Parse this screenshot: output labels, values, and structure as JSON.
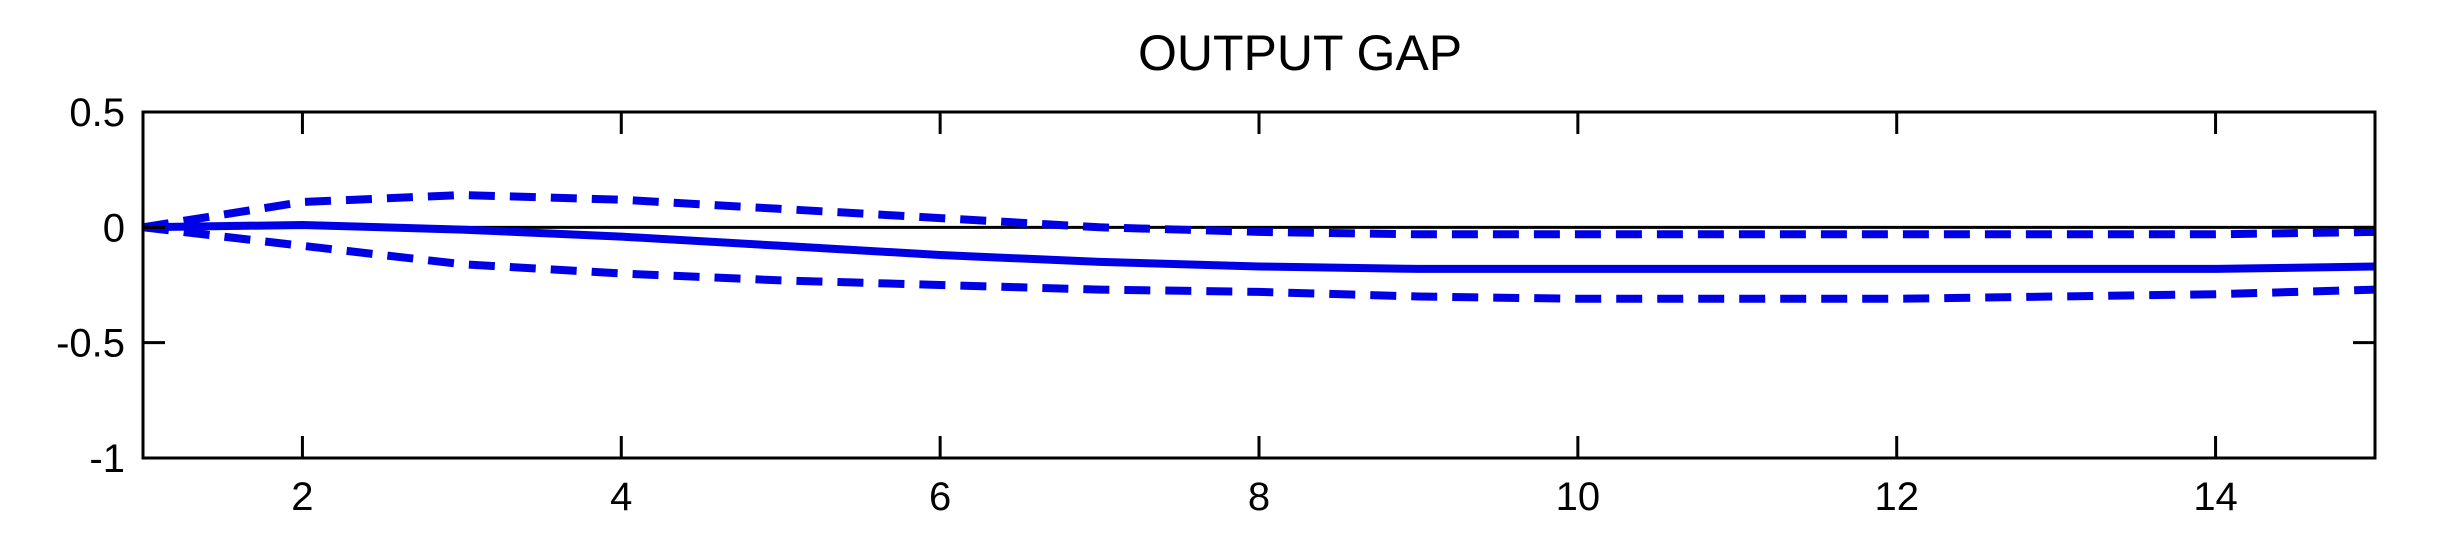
{
  "chart_data": {
    "type": "line",
    "title": "OUTPUT GAP",
    "xlabel": "",
    "ylabel": "",
    "xlim": [
      1,
      15
    ],
    "ylim": [
      -1,
      0.5
    ],
    "x_ticks": [
      2,
      4,
      6,
      8,
      10,
      12,
      14
    ],
    "x_tick_labels": [
      "2",
      "4",
      "6",
      "8",
      "10",
      "12",
      "14"
    ],
    "y_ticks": [
      0.5,
      0,
      -0.5,
      -1
    ],
    "y_tick_labels": [
      "0.5",
      "0",
      "-0.5",
      "-1"
    ],
    "grid": false,
    "zero_line": true,
    "x": [
      1,
      2,
      3,
      4,
      5,
      6,
      7,
      8,
      9,
      10,
      11,
      12,
      13,
      14,
      15
    ],
    "series": [
      {
        "role": "median",
        "style": "solid",
        "color": "#0000e6",
        "values": [
          0,
          0.01,
          -0.01,
          -0.04,
          -0.08,
          -0.12,
          -0.15,
          -0.17,
          -0.18,
          -0.18,
          -0.18,
          -0.18,
          -0.18,
          -0.18,
          -0.17
        ]
      },
      {
        "role": "upper band",
        "style": "dashed",
        "color": "#0000e6",
        "values": [
          0,
          0.11,
          0.14,
          0.12,
          0.08,
          0.04,
          0.0,
          -0.02,
          -0.03,
          -0.03,
          -0.03,
          -0.03,
          -0.03,
          -0.03,
          -0.02
        ]
      },
      {
        "role": "lower band",
        "style": "dashed",
        "color": "#0000e6",
        "values": [
          0,
          -0.08,
          -0.16,
          -0.2,
          -0.23,
          -0.25,
          -0.27,
          -0.28,
          -0.3,
          -0.31,
          -0.31,
          -0.31,
          -0.3,
          -0.29,
          -0.27
        ]
      }
    ]
  }
}
